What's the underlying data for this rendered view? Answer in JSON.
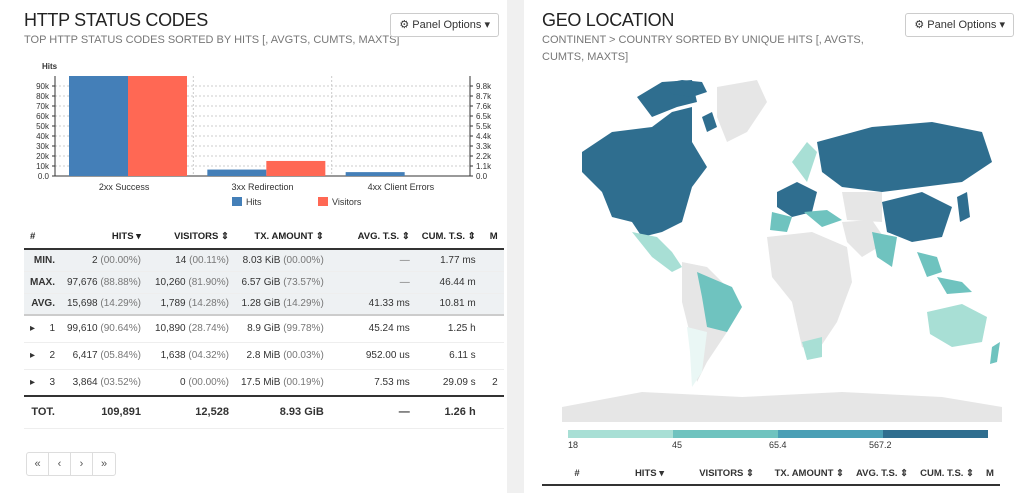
{
  "left": {
    "title": "HTTP STATUS CODES",
    "subtitle": "TOP HTTP STATUS CODES SORTED BY HITS [, AVGTS, CUMTS, MAXTS]",
    "panel_options": "Panel Options",
    "table": {
      "headers": [
        "#",
        "HITS",
        "VISITORS",
        "TX. AMOUNT",
        "AVG. T.S.",
        "CUM. T.S.",
        "M"
      ],
      "meta": [
        {
          "label": "MIN.",
          "hits": "2",
          "hits_pct": "(00.00%)",
          "visitors": "14",
          "visitors_pct": "(00.11%)",
          "tx": "8.03 KiB",
          "tx_pct": "(00.00%)",
          "avg": "—",
          "cum": "1.77 ms"
        },
        {
          "label": "MAX.",
          "hits": "97,676",
          "hits_pct": "(88.88%)",
          "visitors": "10,260",
          "visitors_pct": "(81.90%)",
          "tx": "6.57 GiB",
          "tx_pct": "(73.57%)",
          "avg": "—",
          "cum": "46.44 m"
        },
        {
          "label": "AVG.",
          "hits": "15,698",
          "hits_pct": "(14.29%)",
          "visitors": "1,789",
          "visitors_pct": "(14.28%)",
          "tx": "1.28 GiB",
          "tx_pct": "(14.29%)",
          "avg": "41.33 ms",
          "cum": "10.81 m"
        }
      ],
      "rows": [
        {
          "num": "1",
          "hits": "99,610",
          "hits_pct": "(90.64%)",
          "visitors": "10,890",
          "visitors_pct": "(28.74%)",
          "tx": "8.9 GiB",
          "tx_pct": "(99.78%)",
          "avg": "45.24 ms",
          "cum": "1.25 h",
          "extra": ""
        },
        {
          "num": "2",
          "hits": "6,417",
          "hits_pct": "(05.84%)",
          "visitors": "1,638",
          "visitors_pct": "(04.32%)",
          "tx": "2.8 MiB",
          "tx_pct": "(00.03%)",
          "avg": "952.00 us",
          "cum": "6.11 s",
          "extra": ""
        },
        {
          "num": "3",
          "hits": "3,864",
          "hits_pct": "(03.52%)",
          "visitors": "0",
          "visitors_pct": "(00.00%)",
          "tx": "17.5 MiB",
          "tx_pct": "(00.19%)",
          "avg": "7.53 ms",
          "cum": "29.09 s",
          "extra": "2"
        }
      ],
      "total": {
        "label": "TOT.",
        "hits": "109,891",
        "visitors": "12,528",
        "tx": "8.93 GiB",
        "avg": "—",
        "cum": "1.26 h"
      }
    },
    "pager": [
      "«",
      "‹",
      "›",
      "»"
    ]
  },
  "chart_data": {
    "type": "bar",
    "ylabel": "Hits",
    "categories": [
      "2xx Success",
      "3xx Redirection",
      "4xx Client Errors"
    ],
    "series": [
      {
        "name": "Hits",
        "values": [
          99610,
          6417,
          3864
        ]
      },
      {
        "name": "Visitors",
        "values": [
          10890,
          1638,
          0
        ]
      }
    ],
    "y_left_ticks": [
      "90k",
      "80k",
      "70k",
      "60k",
      "50k",
      "40k",
      "30k",
      "20k",
      "10k",
      "0.0"
    ],
    "y_right_ticks": [
      "9.8k",
      "8.7k",
      "7.6k",
      "6.5k",
      "5.5k",
      "4.4k",
      "3.3k",
      "2.2k",
      "1.1k",
      "0.0"
    ],
    "y_left_max": 99610,
    "y_right_max": 10890,
    "colors": {
      "Hits": "#447fb8",
      "Visitors": "#ff6854"
    }
  },
  "right": {
    "title": "GEO LOCATION",
    "subtitle": "CONTINENT > COUNTRY SORTED BY UNIQUE HITS [, AVGTS, CUMTS, MAXTS]",
    "panel_options": "Panel Options",
    "legend_labels": [
      "18",
      "45",
      "65.4",
      "567.2"
    ],
    "legend_colors": [
      "#a8dfd5",
      "#6fc3bf",
      "#4a9fb5",
      "#2f6e8f"
    ],
    "table_headers": [
      "#",
      "HITS",
      "VISITORS",
      "TX. AMOUNT",
      "AVG. T.S.",
      "CUM. T.S.",
      "M"
    ]
  }
}
